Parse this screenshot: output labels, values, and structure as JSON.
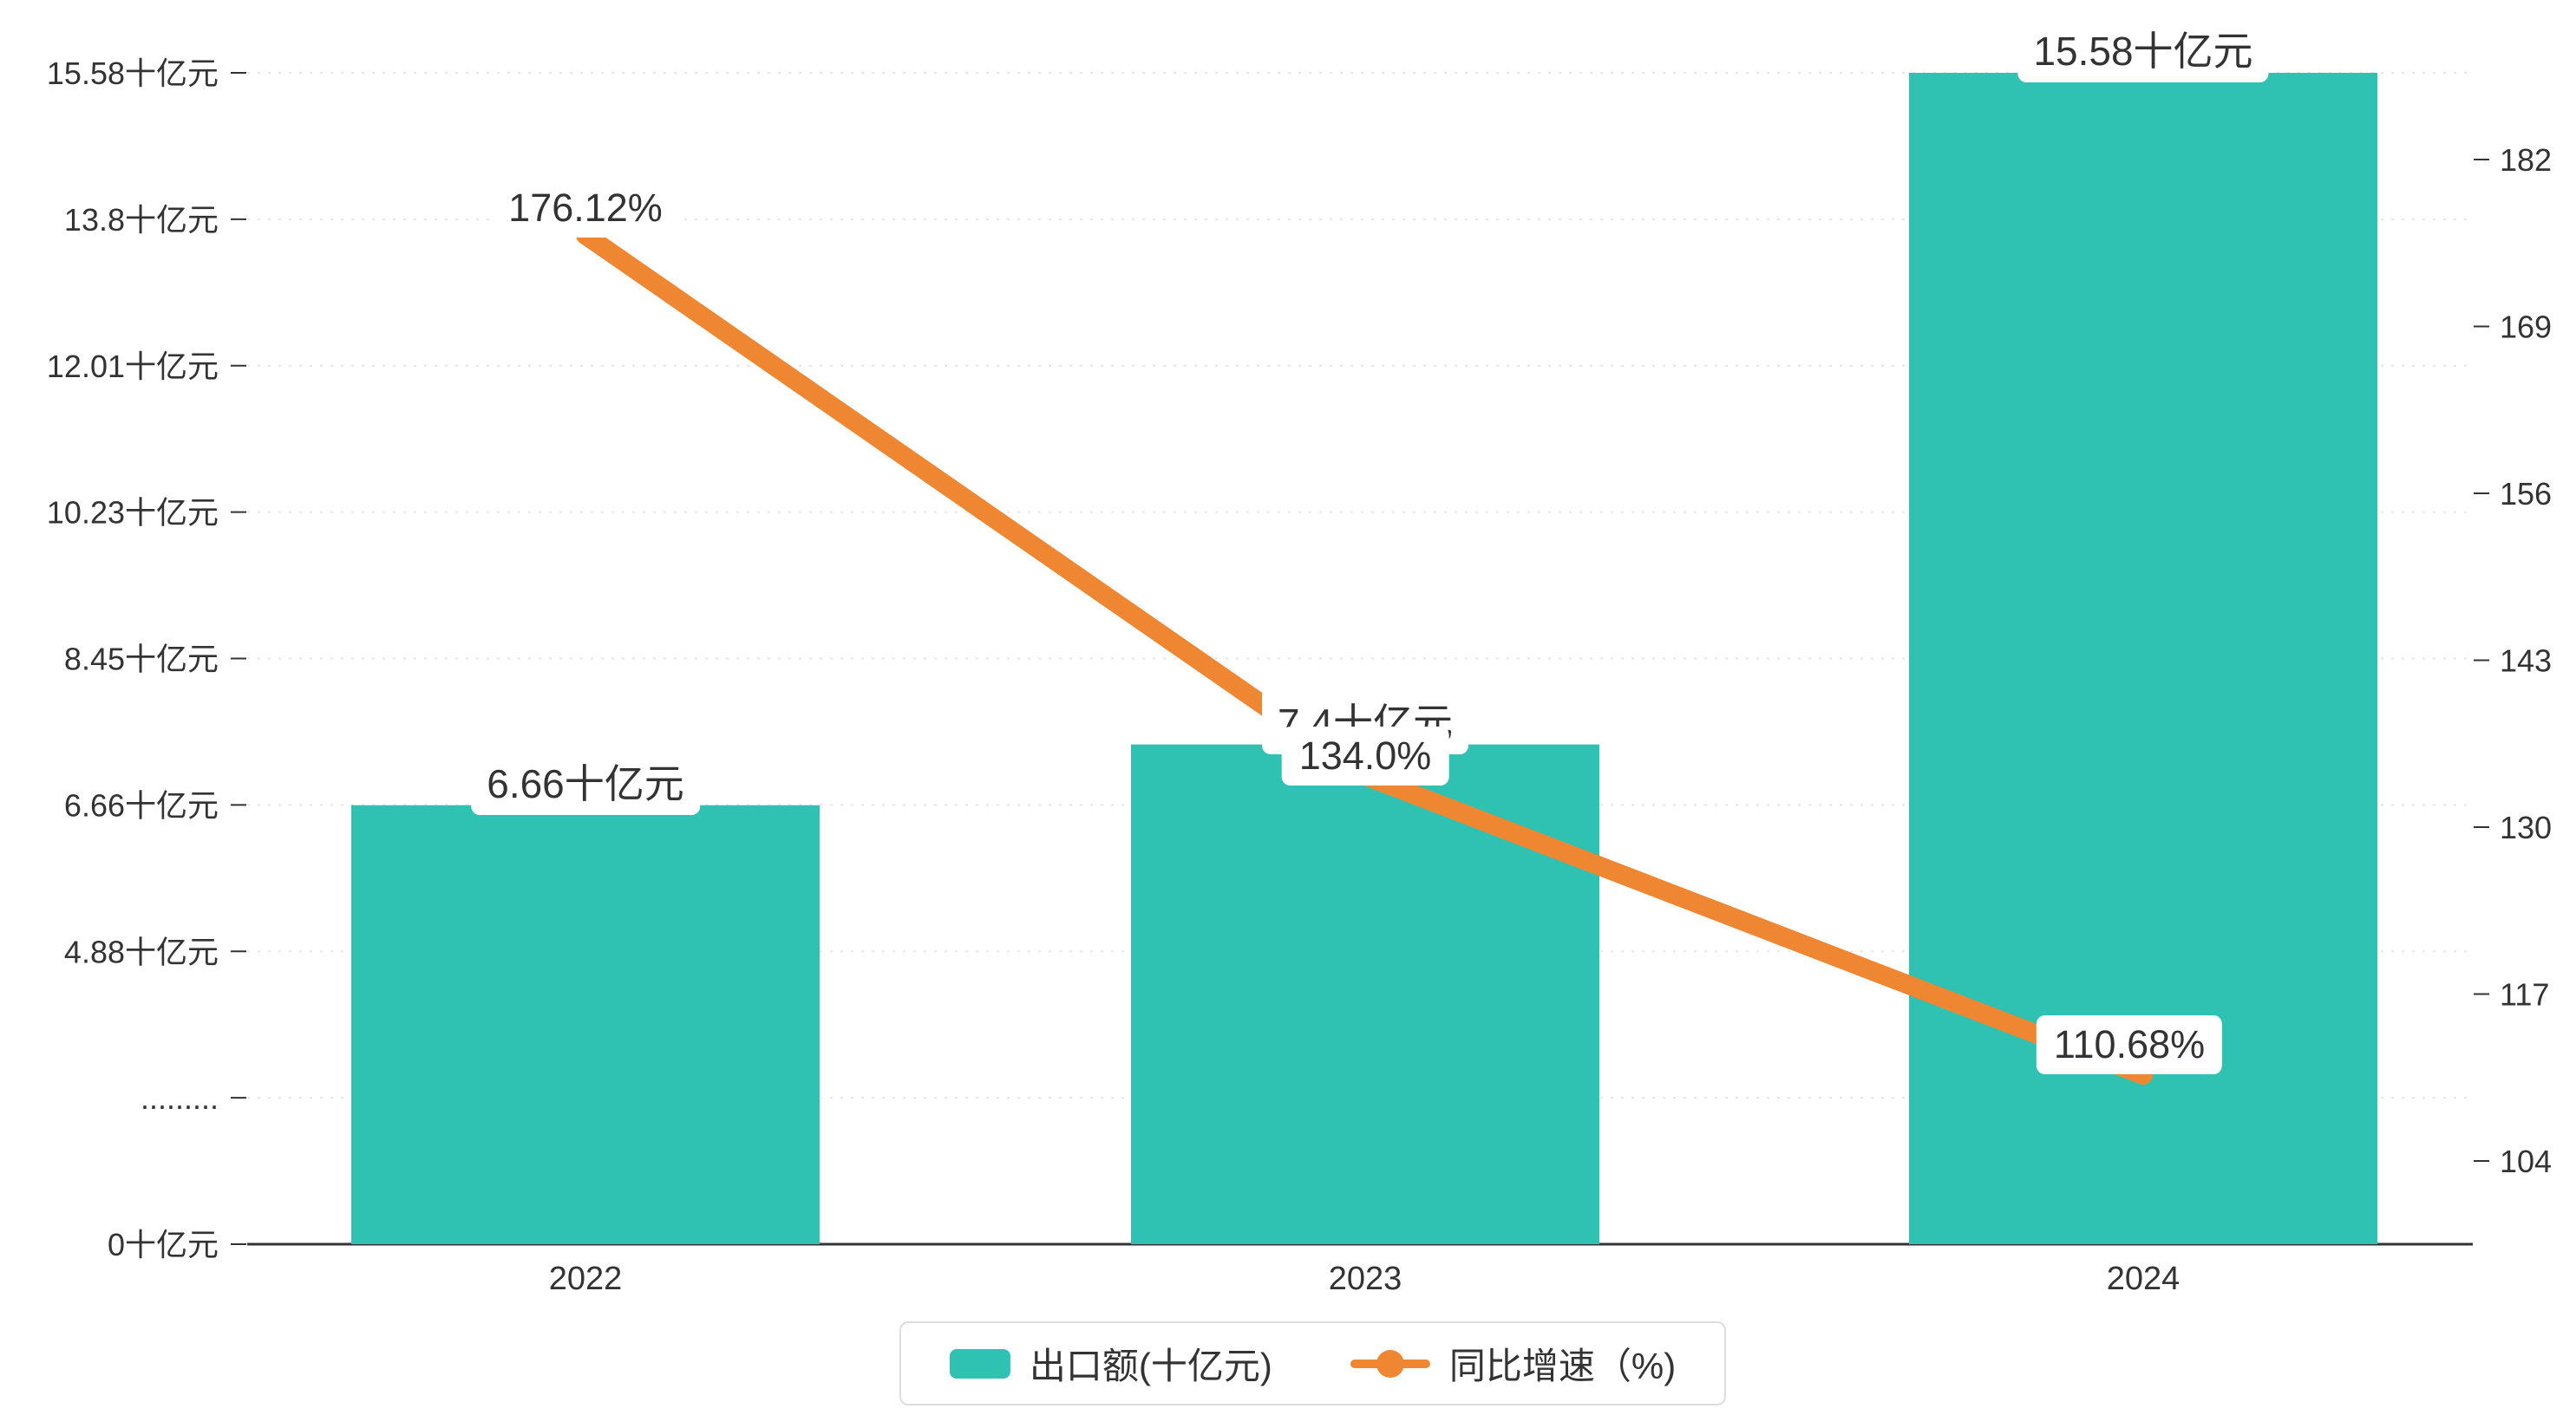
{
  "chart_data": {
    "type": "bar",
    "subtype": "bar-line-combo",
    "title": "",
    "categories": [
      "2022",
      "2023",
      "2024"
    ],
    "series": [
      {
        "name": "出口额(十亿元)",
        "type": "bar",
        "axis": "left",
        "values": [
          6.66,
          7.4,
          15.58
        ],
        "labels": [
          "6.66十亿元",
          "7.4十亿元",
          "15.58十亿元"
        ]
      },
      {
        "name": "同比增速（%)",
        "type": "line",
        "axis": "right",
        "values": [
          176.12,
          134.0,
          110.68
        ],
        "labels": [
          "176.12%",
          "134.0%",
          "110.68%"
        ]
      }
    ],
    "left_axis": {
      "ticks": [
        "15.58十亿元",
        "13.8十亿元",
        "12.01十亿元",
        "10.23十亿元",
        "8.45十亿元",
        "6.66十亿元",
        "4.88十亿元",
        ".........",
        "0十亿元"
      ],
      "tick_values": [
        15.58,
        13.8,
        12.01,
        10.23,
        8.45,
        6.66,
        4.88,
        null,
        0
      ],
      "axis_break": true
    },
    "right_axis": {
      "ticks": [
        "182",
        "169",
        "156",
        "143",
        "130",
        "117",
        "104"
      ],
      "tick_values": [
        182,
        169,
        156,
        143,
        130,
        117,
        104
      ]
    },
    "legend_position": "bottom",
    "grid": "dashed-horizontal",
    "colors": {
      "bar": "#2fc2b2",
      "line": "#ef8632",
      "text": "#333333",
      "axis": "#333333",
      "grid": "#e6e6e6",
      "label_bg": "#ffffff",
      "legend_border": "#dddddd",
      "background": "#ffffff"
    }
  }
}
